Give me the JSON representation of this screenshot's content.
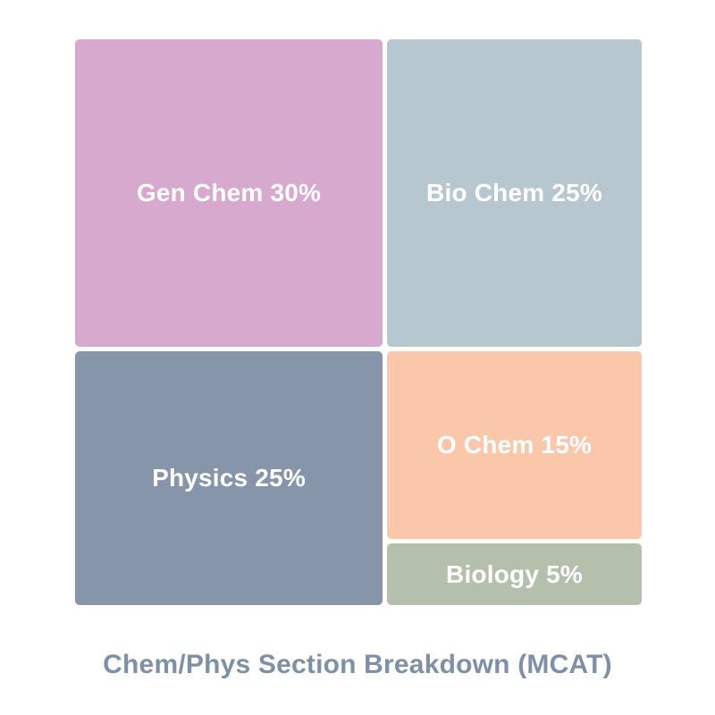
{
  "chart_data": {
    "type": "treemap",
    "title": "Chem/Phys Section Breakdown (MCAT)",
    "title_color": "#7d90a6",
    "background_color": "#ffffff",
    "label_text_color": "#ffffff",
    "total_pct": 100,
    "legend": "none",
    "segments": [
      {
        "name": "Gen Chem",
        "value_pct": 30,
        "label": "Gen Chem 30%",
        "color": "#d8a9ce",
        "position": "top-left"
      },
      {
        "name": "Bio Chem",
        "value_pct": 25,
        "label": "Bio Chem 25%",
        "color": "#b7c7d0",
        "position": "top-right"
      },
      {
        "name": "Physics",
        "value_pct": 25,
        "label": "Physics 25%",
        "color": "#8695a9",
        "position": "bottom-left"
      },
      {
        "name": "O Chem",
        "value_pct": 15,
        "label": "O Chem 15%",
        "color": "#fbc7ab",
        "position": "bottom-right-upper"
      },
      {
        "name": "Biology",
        "value_pct": 5,
        "label": "Biology 5%",
        "color": "#b4c0ac",
        "position": "bottom-right-lower"
      }
    ]
  }
}
